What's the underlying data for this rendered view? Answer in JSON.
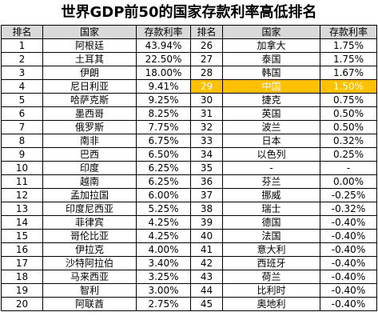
{
  "title": "世界GDP前50的国家存款利率高低排名",
  "headers": [
    "排名",
    "国家",
    "存款利率",
    "排名",
    "国家",
    "存款利率"
  ],
  "highlight": {
    "row": 3,
    "side": "right",
    "color": "#ffc000"
  },
  "rows": [
    {
      "left": {
        "rank": "1",
        "country": "阿根廷",
        "rate": "43.94%"
      },
      "right": {
        "rank": "26",
        "country": "加拿大",
        "rate": "1.75%"
      }
    },
    {
      "left": {
        "rank": "2",
        "country": "土耳其",
        "rate": "22.50%"
      },
      "right": {
        "rank": "27",
        "country": "泰国",
        "rate": "1.75%"
      }
    },
    {
      "left": {
        "rank": "3",
        "country": "伊朗",
        "rate": "18.00%"
      },
      "right": {
        "rank": "28",
        "country": "韩国",
        "rate": "1.67%"
      }
    },
    {
      "left": {
        "rank": "4",
        "country": "尼日利亚",
        "rate": "9.41%"
      },
      "right": {
        "rank": "29",
        "country": "中国",
        "rate": "1.50%"
      }
    },
    {
      "left": {
        "rank": "5",
        "country": "哈萨克斯",
        "rate": "9.25%"
      },
      "right": {
        "rank": "30",
        "country": "捷克",
        "rate": "0.75%"
      }
    },
    {
      "left": {
        "rank": "6",
        "country": "墨西哥",
        "rate": "8.25%"
      },
      "right": {
        "rank": "31",
        "country": "英国",
        "rate": "0.50%"
      }
    },
    {
      "left": {
        "rank": "7",
        "country": "俄罗斯",
        "rate": "7.75%"
      },
      "right": {
        "rank": "32",
        "country": "波兰",
        "rate": "0.50%"
      }
    },
    {
      "left": {
        "rank": "8",
        "country": "南非",
        "rate": "6.75%"
      },
      "right": {
        "rank": "33",
        "country": "日本",
        "rate": "0.32%"
      }
    },
    {
      "left": {
        "rank": "9",
        "country": "巴西",
        "rate": "6.50%"
      },
      "right": {
        "rank": "34",
        "country": "以色列",
        "rate": "0.25%"
      }
    },
    {
      "left": {
        "rank": "10",
        "country": "印度",
        "rate": "6.25%"
      },
      "right": {
        "rank": "35",
        "country": "-",
        "rate": "-"
      }
    },
    {
      "left": {
        "rank": "11",
        "country": "越南",
        "rate": "6.25%"
      },
      "right": {
        "rank": "36",
        "country": "芬兰",
        "rate": "0.00%"
      }
    },
    {
      "left": {
        "rank": "12",
        "country": "孟加拉国",
        "rate": "6.00%"
      },
      "right": {
        "rank": "37",
        "country": "挪威",
        "rate": "-0.25%"
      }
    },
    {
      "left": {
        "rank": "13",
        "country": "印度尼西亚",
        "rate": "5.25%"
      },
      "right": {
        "rank": "38",
        "country": "瑞士",
        "rate": "-0.32%"
      }
    },
    {
      "left": {
        "rank": "14",
        "country": "菲律宾",
        "rate": "4.25%"
      },
      "right": {
        "rank": "39",
        "country": "德国",
        "rate": "-0.40%"
      }
    },
    {
      "left": {
        "rank": "15",
        "country": "哥伦比亚",
        "rate": "4.25%"
      },
      "right": {
        "rank": "40",
        "country": "法国",
        "rate": "-0.40%"
      }
    },
    {
      "left": {
        "rank": "16",
        "country": "伊拉克",
        "rate": "4.00%"
      },
      "right": {
        "rank": "41",
        "country": "意大利",
        "rate": "-0.40%"
      }
    },
    {
      "left": {
        "rank": "17",
        "country": "沙特阿拉伯",
        "rate": "3.40%"
      },
      "right": {
        "rank": "42",
        "country": "西班牙",
        "rate": "-0.40%"
      }
    },
    {
      "left": {
        "rank": "18",
        "country": "马来西亚",
        "rate": "3.25%"
      },
      "right": {
        "rank": "43",
        "country": "荷兰",
        "rate": "-0.40%"
      }
    },
    {
      "left": {
        "rank": "19",
        "country": "智利",
        "rate": "3.00%"
      },
      "right": {
        "rank": "44",
        "country": "比利时",
        "rate": "-0.40%"
      }
    },
    {
      "left": {
        "rank": "20",
        "country": "阿联酋",
        "rate": "2.75%"
      },
      "right": {
        "rank": "45",
        "country": "奥地利",
        "rate": "-0.40%"
      }
    }
  ]
}
